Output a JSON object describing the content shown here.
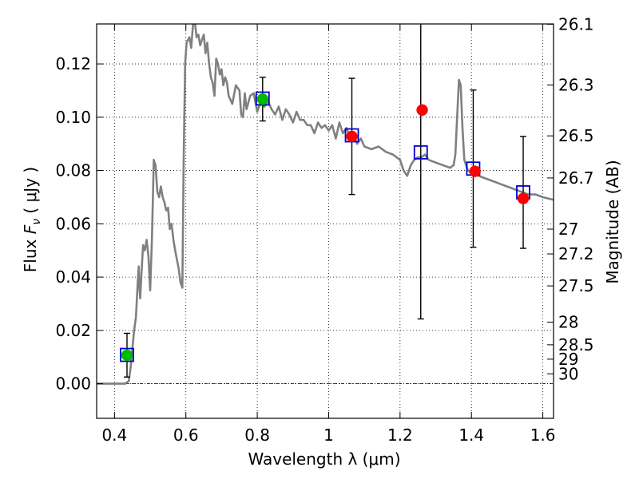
{
  "chart_data": {
    "type": "scatter",
    "xlabel": "Wavelength  λ (μm)",
    "ylabel_prefix": "Flux  ",
    "ylabel_symbol": "F",
    "ylabel_sub": "ν",
    "ylabel_suffix": "  ( μJy )",
    "y2label": "Magnitude (AB)",
    "xlim": [
      0.35,
      1.63
    ],
    "ylim": [
      -0.013,
      0.135
    ],
    "grid": true,
    "x_ticks": [
      0.4,
      0.6,
      0.8,
      1.0,
      1.2,
      1.4,
      1.6
    ],
    "x_tick_labels": [
      "0.4",
      "0.6",
      "0.8",
      "1",
      "1.2",
      "1.4",
      "1.6"
    ],
    "y_ticks": [
      0.0,
      0.02,
      0.04,
      0.06,
      0.08,
      0.1,
      0.12
    ],
    "y_tick_labels": [
      "0.00",
      "0.02",
      "0.04",
      "0.06",
      "0.08",
      "0.10",
      "0.12"
    ],
    "mag_ticks": [
      {
        "flux": 0.1349,
        "label": "26.1"
      },
      {
        "flux": 0.1121,
        "label": "26.3"
      },
      {
        "flux": 0.093,
        "label": "26.5"
      },
      {
        "flux": 0.0772,
        "label": "26.7"
      },
      {
        "flux": 0.058,
        "label": "27"
      },
      {
        "flux": 0.0487,
        "label": "27.2"
      },
      {
        "flux": 0.0367,
        "label": "27.5"
      },
      {
        "flux": 0.0231,
        "label": "28"
      },
      {
        "flux": 0.0146,
        "label": "28.5"
      },
      {
        "flux": 0.0092,
        "label": "29"
      },
      {
        "flux": 0.0037,
        "label": "30"
      }
    ],
    "model_spectrum": {
      "color": "#808080",
      "x": [
        0.35,
        0.425,
        0.43,
        0.44,
        0.445,
        0.455,
        0.46,
        0.465,
        0.468,
        0.47,
        0.472,
        0.475,
        0.48,
        0.485,
        0.49,
        0.495,
        0.5,
        0.505,
        0.51,
        0.515,
        0.52,
        0.525,
        0.53,
        0.535,
        0.54,
        0.545,
        0.55,
        0.555,
        0.56,
        0.565,
        0.57,
        0.58,
        0.585,
        0.59,
        0.594,
        0.598,
        0.602,
        0.61,
        0.615,
        0.62,
        0.625,
        0.63,
        0.635,
        0.64,
        0.645,
        0.65,
        0.655,
        0.66,
        0.665,
        0.67,
        0.675,
        0.68,
        0.685,
        0.69,
        0.695,
        0.7,
        0.705,
        0.71,
        0.715,
        0.72,
        0.73,
        0.74,
        0.75,
        0.755,
        0.76,
        0.765,
        0.77,
        0.78,
        0.79,
        0.8,
        0.81,
        0.82,
        0.83,
        0.84,
        0.85,
        0.86,
        0.87,
        0.88,
        0.89,
        0.9,
        0.91,
        0.92,
        0.93,
        0.94,
        0.95,
        0.96,
        0.97,
        0.98,
        0.99,
        1.0,
        1.01,
        1.02,
        1.03,
        1.04,
        1.05,
        1.06,
        1.07,
        1.08,
        1.09,
        1.1,
        1.12,
        1.14,
        1.16,
        1.18,
        1.2,
        1.21,
        1.22,
        1.23,
        1.24,
        1.25,
        1.26,
        1.27,
        1.28,
        1.3,
        1.32,
        1.34,
        1.35,
        1.355,
        1.36,
        1.365,
        1.37,
        1.375,
        1.38,
        1.39,
        1.4,
        1.42,
        1.44,
        1.46,
        1.48,
        1.5,
        1.52,
        1.54,
        1.56,
        1.58,
        1.6,
        1.63
      ],
      "y": [
        0.0,
        0.0,
        0.0,
        0.001,
        0.006,
        0.02,
        0.025,
        0.038,
        0.044,
        0.036,
        0.032,
        0.04,
        0.052,
        0.05,
        0.054,
        0.048,
        0.035,
        0.055,
        0.084,
        0.082,
        0.072,
        0.07,
        0.074,
        0.07,
        0.068,
        0.065,
        0.066,
        0.058,
        0.06,
        0.054,
        0.05,
        0.043,
        0.038,
        0.036,
        0.085,
        0.12,
        0.128,
        0.13,
        0.126,
        0.135,
        0.136,
        0.13,
        0.131,
        0.127,
        0.129,
        0.131,
        0.124,
        0.128,
        0.12,
        0.115,
        0.113,
        0.108,
        0.122,
        0.12,
        0.116,
        0.118,
        0.112,
        0.115,
        0.113,
        0.108,
        0.105,
        0.112,
        0.11,
        0.101,
        0.1,
        0.109,
        0.103,
        0.108,
        0.109,
        0.102,
        0.106,
        0.104,
        0.106,
        0.103,
        0.101,
        0.104,
        0.099,
        0.103,
        0.101,
        0.098,
        0.102,
        0.099,
        0.099,
        0.097,
        0.097,
        0.094,
        0.098,
        0.096,
        0.097,
        0.095,
        0.097,
        0.092,
        0.098,
        0.094,
        0.096,
        0.092,
        0.093,
        0.09,
        0.092,
        0.089,
        0.088,
        0.089,
        0.087,
        0.086,
        0.084,
        0.08,
        0.078,
        0.082,
        0.084,
        0.085,
        0.085,
        0.086,
        0.084,
        0.083,
        0.082,
        0.081,
        0.082,
        0.086,
        0.1,
        0.114,
        0.112,
        0.096,
        0.084,
        0.08,
        0.079,
        0.078,
        0.077,
        0.076,
        0.075,
        0.074,
        0.073,
        0.072,
        0.071,
        0.071,
        0.07,
        0.069
      ]
    },
    "series": [
      {
        "marker": "circle",
        "color": "#00bb00",
        "points": [
          {
            "x": 0.435,
            "y": 0.0107,
            "err": 0.0082
          },
          {
            "x": 0.815,
            "y": 0.1068,
            "err": 0.0082
          }
        ]
      },
      {
        "marker": "circle",
        "color": "#ff0000",
        "points": [
          {
            "x": 1.065,
            "y": 0.0928,
            "err": 0.0218
          },
          {
            "x": 1.262,
            "y": 0.1027,
            "err": null
          },
          {
            "x": 1.41,
            "y": 0.0797,
            "err": null
          },
          {
            "x": 1.545,
            "y": 0.0695,
            "err": null
          }
        ]
      },
      {
        "marker": "open-square",
        "color": "#0000cc",
        "points": [
          {
            "x": 0.435,
            "y": 0.0108,
            "err": null
          },
          {
            "x": 0.815,
            "y": 0.107,
            "err": null
          },
          {
            "x": 1.065,
            "y": 0.0932,
            "err": null
          },
          {
            "x": 1.258,
            "y": 0.0868,
            "err": 0.0625
          },
          {
            "x": 1.405,
            "y": 0.0807,
            "err": 0.0295
          },
          {
            "x": 1.545,
            "y": 0.0718,
            "err": 0.021
          }
        ]
      }
    ]
  }
}
